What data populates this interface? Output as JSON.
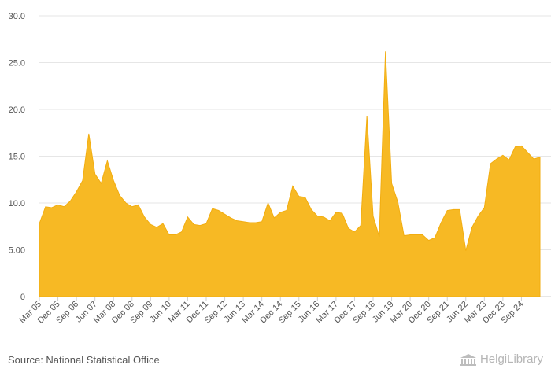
{
  "chart_data": {
    "type": "area",
    "title": "",
    "xlabel": "",
    "ylabel": "",
    "ylim": [
      0,
      30
    ],
    "yticks": [
      0,
      5,
      10,
      15,
      20,
      25,
      30
    ],
    "ytick_labels": [
      "0",
      "5.00",
      "10.0",
      "15.0",
      "20.0",
      "25.0",
      "30.0"
    ],
    "grid": true,
    "color": "#f7b924",
    "xtick_labels": [
      "Mar 05",
      "Dec 05",
      "Sep 06",
      "Jun 07",
      "Mar 08",
      "Dec 08",
      "Sep 09",
      "Jun 10",
      "Mar 11",
      "Dec 11",
      "Sep 12",
      "Jun 13",
      "Mar 14",
      "Dec 14",
      "Sep 15",
      "Jun 16",
      "Mar 17",
      "Dec 17",
      "Sep 18",
      "Jun 19",
      "Mar 20",
      "Dec 20",
      "Sep 21",
      "Jun 22",
      "Mar 23",
      "Dec 23",
      "Sep 24"
    ],
    "start_quarter": "Mar 05",
    "values": [
      7.8,
      9.6,
      9.5,
      9.8,
      9.6,
      10.2,
      11.2,
      12.4,
      17.4,
      13.1,
      12.1,
      14.5,
      12.4,
      10.8,
      10.0,
      9.6,
      9.8,
      8.5,
      7.7,
      7.4,
      7.8,
      6.6,
      6.6,
      6.9,
      8.5,
      7.7,
      7.6,
      7.8,
      9.4,
      9.2,
      8.8,
      8.4,
      8.1,
      8.0,
      7.9,
      7.9,
      8.0,
      10.0,
      8.4,
      9.0,
      9.2,
      11.8,
      10.7,
      10.6,
      9.3,
      8.6,
      8.5,
      8.1,
      9.0,
      8.9,
      7.3,
      6.9,
      7.6,
      19.3,
      8.6,
      6.4,
      26.2,
      12.1,
      10.1,
      6.5,
      6.6,
      6.6,
      6.6,
      6.0,
      6.3,
      7.9,
      9.2,
      9.3,
      9.3,
      4.9,
      7.4,
      8.6,
      9.5,
      14.2,
      14.7,
      15.1,
      14.6,
      16.0,
      16.1,
      15.4,
      14.7,
      14.9
    ]
  },
  "footer": {
    "source": "Source: National Statistical Office",
    "logo_text": "HelgiLibrary"
  }
}
